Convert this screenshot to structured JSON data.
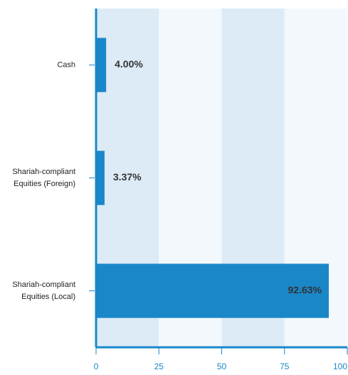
{
  "chart_data": {
    "type": "bar",
    "orientation": "horizontal",
    "categories": [
      [
        "Cash"
      ],
      [
        "Shariah-compliant",
        "Equities (Foreign)"
      ],
      [
        "Shariah-compliant",
        "Equities (Local)"
      ]
    ],
    "values": [
      4.0,
      3.37,
      92.63
    ],
    "data_labels": [
      "4.00%",
      "3.37%",
      "92.63%"
    ],
    "xlim": [
      0,
      100
    ],
    "x_ticks": [
      "0",
      "25",
      "50",
      "75",
      "100"
    ],
    "title": "",
    "xlabel": "",
    "ylabel": "",
    "grid": "alternating vertical bands",
    "colors": {
      "bar": "#1a87c9",
      "axis": "#1a87c9",
      "tick_label": "#1a87c9",
      "band_dark": "#dcebf6",
      "band_light": "#f3f8fc"
    }
  }
}
